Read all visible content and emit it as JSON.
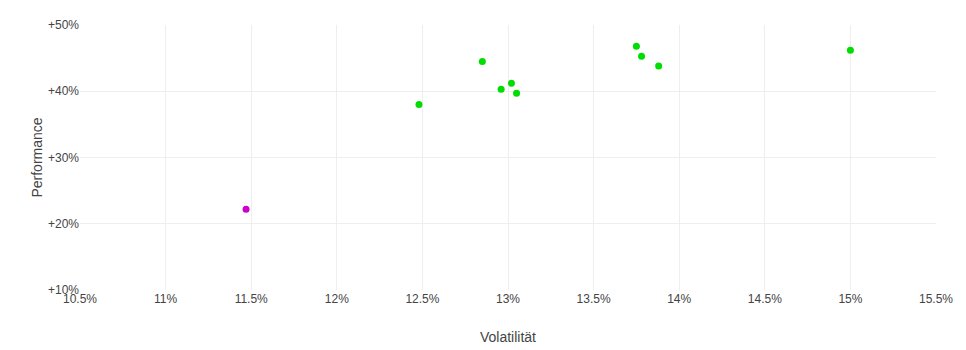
{
  "chart_data": {
    "type": "scatter",
    "xlabel": "Volatilität",
    "ylabel": "Performance",
    "xlim": [
      0.105,
      0.155
    ],
    "ylim": [
      0.1,
      0.5
    ],
    "xticks": [
      {
        "value": 0.105,
        "label": "10.5%"
      },
      {
        "value": 0.11,
        "label": "11%"
      },
      {
        "value": 0.115,
        "label": "11.5%"
      },
      {
        "value": 0.12,
        "label": "12%"
      },
      {
        "value": 0.125,
        "label": "12.5%"
      },
      {
        "value": 0.13,
        "label": "13%"
      },
      {
        "value": 0.135,
        "label": "13.5%"
      },
      {
        "value": 0.14,
        "label": "14%"
      },
      {
        "value": 0.145,
        "label": "14.5%"
      },
      {
        "value": 0.15,
        "label": "15%"
      },
      {
        "value": 0.155,
        "label": "15.5%"
      }
    ],
    "yticks": [
      {
        "value": 0.1,
        "label": "+10%"
      },
      {
        "value": 0.2,
        "label": "+20%"
      },
      {
        "value": 0.3,
        "label": "+30%"
      },
      {
        "value": 0.4,
        "label": "+40%"
      },
      {
        "value": 0.5,
        "label": "+50%"
      }
    ],
    "grid": true,
    "series": [
      {
        "color": "#00dd00",
        "x": [
          0.1248,
          0.1285,
          0.1296,
          0.1302,
          0.1305,
          0.1375,
          0.1378,
          0.1388,
          0.15
        ],
        "values": [
          0.38,
          0.445,
          0.403,
          0.412,
          0.397,
          0.468,
          0.453,
          0.438,
          0.462
        ]
      },
      {
        "color": "#cc00cc",
        "x": [
          0.1147
        ],
        "values": [
          0.222
        ]
      }
    ]
  }
}
